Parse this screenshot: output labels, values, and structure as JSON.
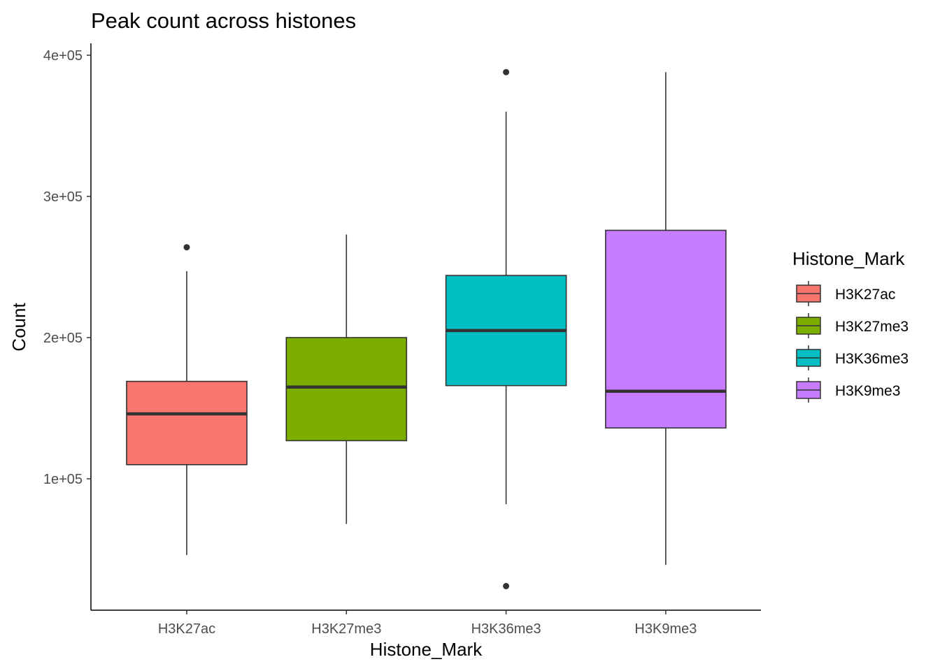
{
  "chart_data": {
    "type": "box",
    "title": "Peak count across histones",
    "xlabel": "Histone_Mark",
    "ylabel": "Count",
    "y_ticks": [
      {
        "value": 100000,
        "label": "1e+05"
      },
      {
        "value": 200000,
        "label": "2e+05"
      },
      {
        "value": 300000,
        "label": "3e+05"
      },
      {
        "value": 400000,
        "label": "4e+05"
      }
    ],
    "ylim": [
      10000,
      410000
    ],
    "grid": false,
    "legend": {
      "title": "Histone_Mark",
      "placement": "right"
    },
    "categories": [
      "H3K27ac",
      "H3K27me3",
      "H3K36me3",
      "H3K9me3"
    ],
    "series": [
      {
        "name": "H3K27ac",
        "color": "#F8766D",
        "whisker_low": 46000,
        "q1": 110000,
        "median": 146000,
        "q3": 169000,
        "whisker_high": 247000,
        "outliers": [
          264000
        ]
      },
      {
        "name": "H3K27me3",
        "color": "#7CAE00",
        "whisker_low": 68000,
        "q1": 127000,
        "median": 165000,
        "q3": 200000,
        "whisker_high": 273000,
        "outliers": []
      },
      {
        "name": "H3K36me3",
        "color": "#00BFC4",
        "whisker_low": 82000,
        "q1": 166000,
        "median": 205000,
        "q3": 244000,
        "whisker_high": 360000,
        "outliers": [
          388000,
          24000
        ]
      },
      {
        "name": "H3K9me3",
        "color": "#C77CFF",
        "whisker_low": 39000,
        "q1": 136000,
        "median": 162000,
        "q3": 276000,
        "whisker_high": 388000,
        "outliers": []
      }
    ]
  }
}
